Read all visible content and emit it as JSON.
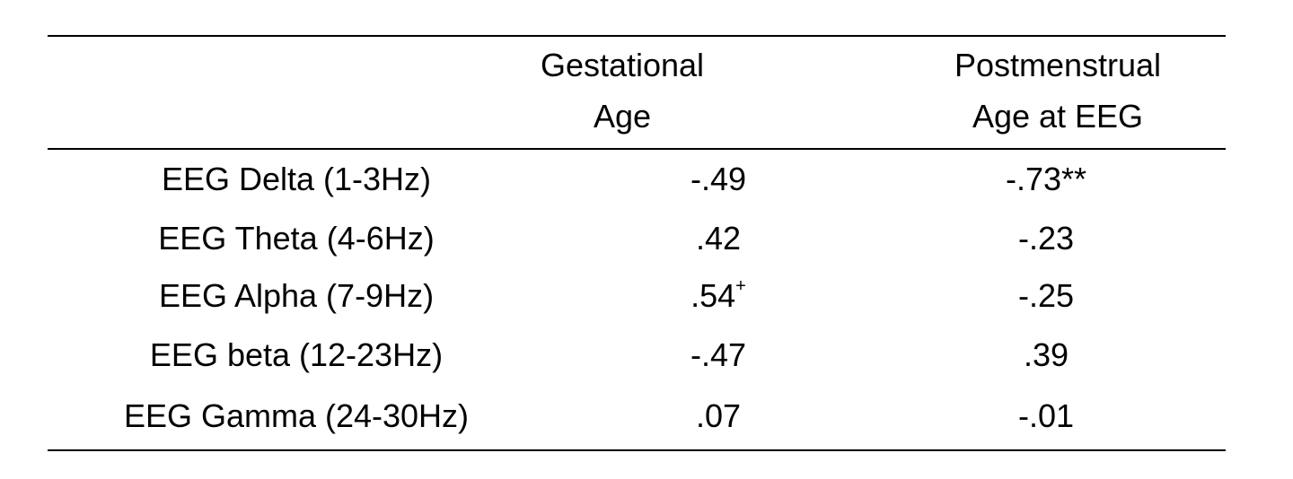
{
  "table": {
    "headers": {
      "gestational": [
        "Gestational",
        "Age"
      ],
      "postmenstrual": [
        "Postmenstrual",
        "Age at EEG"
      ]
    },
    "rows": [
      {
        "label": "EEG Delta (1-3Hz)",
        "gestational": "-.49",
        "gestational_mark": "",
        "postmenstrual": "-.73**"
      },
      {
        "label": "EEG Theta (4-6Hz)",
        "gestational": ".42",
        "gestational_mark": "",
        "postmenstrual": "-.23"
      },
      {
        "label": "EEG Alpha (7-9Hz)",
        "gestational": ".54",
        "gestational_mark": "+",
        "postmenstrual": "-.25"
      },
      {
        "label": "EEG beta (12-23Hz)",
        "gestational": "-.47",
        "gestational_mark": "",
        "postmenstrual": ".39"
      },
      {
        "label": "EEG Gamma (24-30Hz)",
        "gestational": ".07",
        "gestational_mark": "",
        "postmenstrual": "-.01"
      }
    ]
  }
}
